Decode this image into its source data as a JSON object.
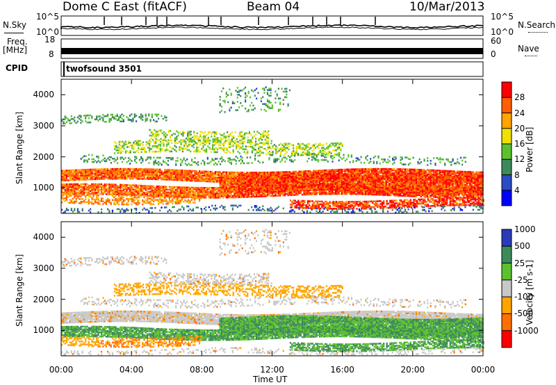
{
  "header": {
    "station": "Dome C East (fitACF)",
    "beam": "Beam 04",
    "date": "10/Mar/2013"
  },
  "side_labels": {
    "nsky": "N.Sky",
    "nsearch": "N.Search",
    "freq": "Freq.",
    "freq_unit": "[MHz]",
    "nave": "Nave",
    "cpid": "CPID",
    "cpid_value": "twofsound 3501"
  },
  "strip_ticks": {
    "noise_left": [
      "10^5",
      "10^0"
    ],
    "noise_right": [
      "10^5",
      "10^0"
    ],
    "freq_left": [
      "18",
      "8"
    ],
    "nave_right": [
      "60",
      "0"
    ]
  },
  "colors": {
    "power": [
      "#0000ff",
      "#2a4cc4",
      "#3c8a5a",
      "#5cc12f",
      "#f0e000",
      "#ffa500",
      "#ff5f00",
      "#ff0000"
    ],
    "velocity": [
      "#2a3bb8",
      "#3c8a5a",
      "#5cc12f",
      "#c8c8c8",
      "#ffa500",
      "#ff7000",
      "#ff0000"
    ]
  },
  "chart_data": [
    {
      "type": "heatmap",
      "title": "",
      "xlabel": "Time UT",
      "ylabel": "Slant Range [km]",
      "x_range": [
        "00:00",
        "24:00"
      ],
      "x_ticks": [
        "00:00",
        "04:00",
        "08:00",
        "12:00",
        "16:00",
        "20:00",
        "00:00"
      ],
      "ylim": [
        180,
        4500
      ],
      "y_ticks": [
        1000,
        2000,
        3000,
        4000
      ],
      "colorbar": {
        "label": "Power [dB]",
        "range": [
          0,
          32
        ],
        "ticks": [
          4,
          8,
          12,
          16,
          20,
          24,
          28
        ]
      }
    },
    {
      "type": "heatmap",
      "title": "",
      "xlabel": "Time UT",
      "ylabel": "Slant Range [km]",
      "x_range": [
        "00:00",
        "24:00"
      ],
      "x_ticks": [
        "00:00",
        "04:00",
        "08:00",
        "12:00",
        "16:00",
        "20:00",
        "00:00"
      ],
      "ylim": [
        180,
        4500
      ],
      "y_ticks": [
        1000,
        2000,
        3000,
        4000
      ],
      "colorbar": {
        "label": "Velocity [m s-1]",
        "ticks": [
          1000,
          500,
          25,
          -25,
          -100,
          -500,
          -1000
        ]
      }
    }
  ]
}
